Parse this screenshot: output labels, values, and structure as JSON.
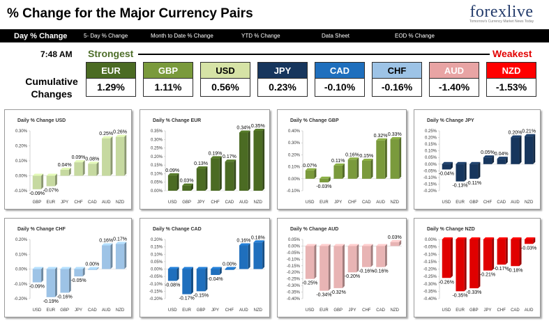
{
  "header": {
    "title": "% Change for the Major Currency Pairs",
    "logo_main": "forexlive",
    "logo_sub": "Tomorrow's Currency Market News Today"
  },
  "nav": {
    "items": [
      {
        "label": "Day % Change",
        "active": true
      },
      {
        "label": "5- Day % Change",
        "active": false
      },
      {
        "label": "Month to Date % Change",
        "active": false
      },
      {
        "label": "YTD % Change",
        "active": false
      },
      {
        "label": "Data Sheet",
        "active": false
      },
      {
        "label": "EOD % Change",
        "active": false
      }
    ]
  },
  "summary": {
    "time": "7:48 AM",
    "strongest": "Strongest",
    "weakest": "Weakest",
    "cumulative_label": "Cumulative Changes",
    "currencies": [
      {
        "code": "EUR",
        "value": "1.29%",
        "color": "#4b6b23",
        "text_color": "#ffffff"
      },
      {
        "code": "GBP",
        "value": "1.11%",
        "color": "#7a9a3c",
        "text_color": "#ffffff"
      },
      {
        "code": "USD",
        "value": "0.56%",
        "color": "#d6e3a6",
        "text_color": "#000000"
      },
      {
        "code": "JPY",
        "value": "0.23%",
        "color": "#17365d",
        "text_color": "#ffffff"
      },
      {
        "code": "CAD",
        "value": "-0.10%",
        "color": "#1f6fbd",
        "text_color": "#ffffff"
      },
      {
        "code": "CHF",
        "value": "-0.16%",
        "color": "#9dc3e6",
        "text_color": "#000000"
      },
      {
        "code": "AUD",
        "value": "-1.40%",
        "color": "#e8a4a4",
        "text_color": "#ffffff"
      },
      {
        "code": "NZD",
        "value": "-1.53%",
        "color": "#ff0000",
        "text_color": "#ffffff"
      }
    ]
  },
  "chart_data": [
    {
      "type": "bar",
      "title": "Daily % Change USD",
      "color": "#c6d9a0",
      "ylim": [
        -0.1,
        0.3
      ],
      "yticks": [
        -0.1,
        0.0,
        0.1,
        0.2,
        0.3
      ],
      "categories": [
        "GBP",
        "EUR",
        "JPY",
        "CHF",
        "CAD",
        "AUD",
        "NZD"
      ],
      "values": [
        -0.09,
        -0.07,
        0.04,
        0.09,
        0.08,
        0.25,
        0.26
      ],
      "labels": [
        "-0.09%",
        "-0.07%",
        "0.04%",
        "0.09%",
        "0.08%",
        "0.25%",
        "0.26%"
      ]
    },
    {
      "type": "bar",
      "title": "Daily % Change EUR",
      "color": "#4b6b23",
      "ylim": [
        0,
        0.35
      ],
      "yticks": [
        0,
        0.05,
        0.1,
        0.15,
        0.2,
        0.25,
        0.3,
        0.35
      ],
      "categories": [
        "USD",
        "GBP",
        "JPY",
        "CHF",
        "CAD",
        "AUD",
        "NZD"
      ],
      "values": [
        0.09,
        0.03,
        0.13,
        0.19,
        0.17,
        0.34,
        0.35
      ],
      "labels": [
        "0.09%",
        "0.03%",
        "0.13%",
        "0.19%",
        "0.17%",
        "0.34%",
        "0.35%"
      ]
    },
    {
      "type": "bar",
      "title": "Daily % Change GBP",
      "color": "#7a9a3c",
      "ylim": [
        -0.1,
        0.4
      ],
      "yticks": [
        -0.1,
        0.0,
        0.1,
        0.2,
        0.3,
        0.4
      ],
      "categories": [
        "USD",
        "EUR",
        "JPY",
        "CHF",
        "CAD",
        "AUD",
        "NZD"
      ],
      "values": [
        0.07,
        -0.03,
        0.11,
        0.16,
        0.15,
        0.32,
        0.33
      ],
      "labels": [
        "0.07%",
        "-0.03%",
        "0.11%",
        "0.16%",
        "0.15%",
        "0.32%",
        "0.33%"
      ]
    },
    {
      "type": "bar",
      "title": "Daily % Change JPY",
      "color": "#17365d",
      "ylim": [
        -0.2,
        0.25
      ],
      "yticks": [
        -0.2,
        -0.15,
        -0.1,
        -0.05,
        0.0,
        0.05,
        0.1,
        0.15,
        0.2,
        0.25
      ],
      "categories": [
        "USD",
        "EUR",
        "GBP",
        "CHF",
        "CAD",
        "AUD",
        "NZD"
      ],
      "values": [
        -0.04,
        -0.13,
        -0.11,
        0.05,
        0.04,
        0.2,
        0.21
      ],
      "labels": [
        "-0.04%",
        "-0.13%",
        "-0.11%",
        "0.05%",
        "0.04%",
        "0.20%",
        "0.21%"
      ]
    },
    {
      "type": "bar",
      "title": "Daily % Change CHF",
      "color": "#9dc3e6",
      "ylim": [
        -0.2,
        0.2
      ],
      "yticks": [
        -0.2,
        -0.1,
        0.0,
        0.1,
        0.2
      ],
      "categories": [
        "USD",
        "EUR",
        "GBP",
        "JPY",
        "CAD",
        "AUD",
        "NZD"
      ],
      "values": [
        -0.09,
        -0.19,
        -0.16,
        -0.05,
        0.0,
        0.16,
        0.17
      ],
      "labels": [
        "-0.09%",
        "-0.19%",
        "-0.16%",
        "-0.05%",
        "0.00%",
        "0.16%",
        "0.17%"
      ]
    },
    {
      "type": "bar",
      "title": "Daily % Change CAD",
      "color": "#1f6fbd",
      "ylim": [
        -0.2,
        0.2
      ],
      "yticks": [
        -0.2,
        -0.15,
        -0.1,
        -0.05,
        0.0,
        0.05,
        0.1,
        0.15,
        0.2
      ],
      "categories": [
        "USD",
        "EUR",
        "GBP",
        "JPY",
        "CHF",
        "AUD",
        "NZD"
      ],
      "values": [
        -0.08,
        -0.17,
        -0.15,
        -0.04,
        0.0,
        0.16,
        0.18
      ],
      "labels": [
        "-0.08%",
        "-0.17%",
        "-0.15%",
        "-0.04%",
        "0.00%",
        "0.16%",
        "0.18%"
      ]
    },
    {
      "type": "bar",
      "title": "Daily % Change AUD",
      "color": "#e8b4b4",
      "ylim": [
        -0.4,
        0.05
      ],
      "yticks": [
        -0.4,
        -0.35,
        -0.3,
        -0.25,
        -0.2,
        -0.15,
        -0.1,
        -0.05,
        0.0,
        0.05
      ],
      "categories": [
        "USD",
        "EUR",
        "GBP",
        "JPY",
        "CHF",
        "CAD",
        "NZD"
      ],
      "values": [
        -0.25,
        -0.34,
        -0.32,
        -0.2,
        -0.16,
        -0.16,
        0.03
      ],
      "labels": [
        "-0.25%",
        "-0.34%",
        "-0.32%",
        "-0.20%",
        "-0.16%",
        "-0.16%",
        "0.03%"
      ]
    },
    {
      "type": "bar",
      "title": "Daily % Change NZD",
      "color": "#e00000",
      "ylim": [
        -0.4,
        0.0
      ],
      "yticks": [
        -0.4,
        -0.35,
        -0.3,
        -0.25,
        -0.2,
        -0.15,
        -0.1,
        -0.05,
        0.0
      ],
      "categories": [
        "USD",
        "EUR",
        "GBP",
        "JPY",
        "CHF",
        "CAD",
        "AUD"
      ],
      "values": [
        -0.26,
        -0.35,
        -0.33,
        -0.21,
        -0.17,
        -0.18,
        -0.03
      ],
      "labels": [
        "-0.26%",
        "-0.35%",
        "-0.33%",
        "-0.21%",
        "-0.17%",
        "-0.18%",
        "-0.03%"
      ]
    }
  ]
}
